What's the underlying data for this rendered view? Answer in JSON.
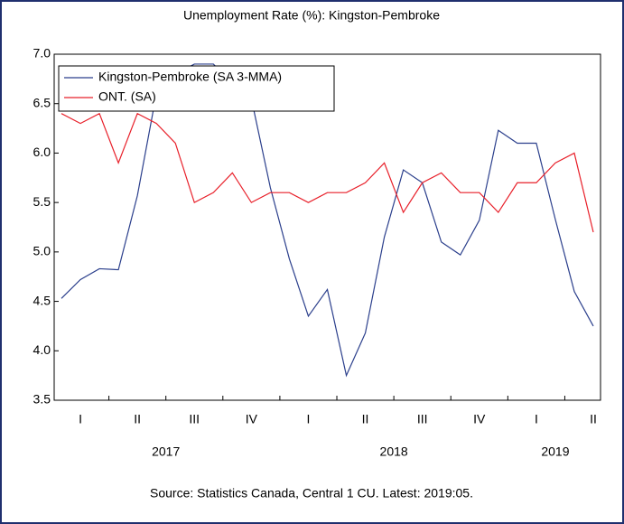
{
  "chart_data": {
    "type": "line",
    "title": "Unemployment Rate (%): Kingston-Pembroke",
    "source": "Source: Statistics Canada, Central 1 CU. Latest: 2019:05.",
    "categories": [
      null,
      "I",
      null,
      null,
      "II",
      null,
      null,
      "III",
      null,
      null,
      "IV",
      null,
      null,
      "I",
      null,
      null,
      "II",
      null,
      null,
      "III",
      null,
      null,
      "IV",
      null,
      null,
      "I",
      null,
      null,
      "II"
    ],
    "years": [
      "2017",
      "2018",
      "2019"
    ],
    "series": [
      {
        "name": "Kingston-Pembroke (SA 3-MMA)",
        "color": "#2b3f8c",
        "values": [
          4.53,
          4.72,
          4.83,
          4.82,
          5.57,
          6.6,
          6.8,
          6.9,
          6.9,
          6.7,
          6.55,
          5.65,
          4.93,
          4.35,
          4.62,
          3.75,
          4.18,
          5.15,
          5.83,
          5.7,
          5.1,
          4.97,
          5.32,
          6.23,
          6.1,
          6.1,
          5.33,
          4.6,
          4.25
        ]
      },
      {
        "name": "ONT. (SA)",
        "color": "#e8202a",
        "values": [
          6.4,
          6.3,
          6.4,
          5.9,
          6.4,
          6.3,
          6.1,
          5.5,
          5.6,
          5.8,
          5.5,
          5.6,
          5.6,
          5.5,
          5.6,
          5.6,
          5.7,
          5.9,
          5.4,
          5.7,
          5.8,
          5.6,
          5.6,
          5.4,
          5.7,
          5.7,
          5.9,
          6.0,
          5.2
        ]
      }
    ],
    "ylim": [
      3.5,
      7.0
    ],
    "yticks": [
      {
        "value": 3.5,
        "label": "3.5"
      },
      {
        "value": 4,
        "label": "4.0"
      },
      {
        "value": 4.5,
        "label": "4.5"
      },
      {
        "value": 5,
        "label": "5.0"
      },
      {
        "value": 5.5,
        "label": "5.5"
      },
      {
        "value": 6,
        "label": "6.0"
      },
      {
        "value": 6.5,
        "label": "6.5"
      },
      {
        "value": 7,
        "label": "7.0"
      }
    ],
    "legend": "upper left"
  }
}
